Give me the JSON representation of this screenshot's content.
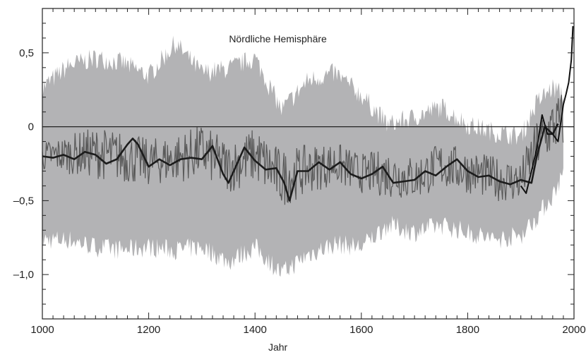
{
  "chart_data": {
    "type": "line",
    "title": "",
    "annotation": "Nördliche Hemisphäre",
    "xlabel": "Jahr",
    "ylabel": "",
    "xlim": [
      1000,
      2000
    ],
    "ylim": [
      -1.3,
      0.8
    ],
    "x_ticks": [
      1000,
      1200,
      1400,
      1600,
      1800,
      2000
    ],
    "x_tick_labels": [
      "1000",
      "1200",
      "1400",
      "1600",
      "1800",
      "2000"
    ],
    "y_ticks": [
      0.5,
      0,
      -0.5,
      -1.0
    ],
    "y_tick_labels": [
      "0,5",
      "0",
      "–0,5",
      "–1,0"
    ],
    "zero_line": true,
    "grid": false,
    "legend": "none",
    "colors": {
      "uncertainty_band": "#b3b3b5",
      "annual_reconstruction": "#5a5a5a",
      "smoothed": "#1c1c1c",
      "instrumental": "#111111",
      "zero_line": "#222222",
      "axes": "#222222"
    },
    "smoothed_series": {
      "x": [
        1000,
        1020,
        1040,
        1060,
        1080,
        1100,
        1120,
        1140,
        1160,
        1170,
        1180,
        1200,
        1220,
        1240,
        1260,
        1280,
        1300,
        1320,
        1340,
        1350,
        1360,
        1380,
        1400,
        1420,
        1440,
        1455,
        1465,
        1480,
        1500,
        1520,
        1540,
        1560,
        1580,
        1600,
        1620,
        1640,
        1660,
        1680,
        1700,
        1720,
        1740,
        1760,
        1780,
        1800,
        1820,
        1840,
        1860,
        1880,
        1900,
        1920,
        1930,
        1945,
        1960,
        1970
      ],
      "y": [
        -0.2,
        -0.21,
        -0.19,
        -0.22,
        -0.17,
        -0.19,
        -0.25,
        -0.22,
        -0.12,
        -0.08,
        -0.12,
        -0.27,
        -0.22,
        -0.26,
        -0.22,
        -0.21,
        -0.22,
        -0.13,
        -0.32,
        -0.38,
        -0.3,
        -0.14,
        -0.23,
        -0.29,
        -0.28,
        -0.38,
        -0.5,
        -0.3,
        -0.3,
        -0.24,
        -0.29,
        -0.24,
        -0.32,
        -0.35,
        -0.32,
        -0.27,
        -0.38,
        -0.37,
        -0.36,
        -0.3,
        -0.33,
        -0.27,
        -0.22,
        -0.3,
        -0.34,
        -0.33,
        -0.37,
        -0.39,
        -0.36,
        -0.38,
        -0.2,
        0.0,
        -0.05,
        0.02
      ]
    },
    "annual_series_envelope": {
      "x": [
        1000,
        1050,
        1100,
        1150,
        1200,
        1250,
        1300,
        1350,
        1400,
        1450,
        1500,
        1550,
        1600,
        1650,
        1700,
        1750,
        1800,
        1850,
        1900,
        1930,
        1960,
        1980
      ],
      "upper": [
        -0.1,
        -0.05,
        0.0,
        -0.03,
        -0.08,
        -0.05,
        0.02,
        -0.1,
        0.0,
        -0.15,
        -0.12,
        -0.1,
        -0.18,
        -0.15,
        -0.2,
        -0.1,
        -0.15,
        -0.2,
        -0.22,
        0.05,
        0.2,
        0.25
      ],
      "lower": [
        -0.3,
        -0.32,
        -0.35,
        -0.38,
        -0.4,
        -0.38,
        -0.35,
        -0.45,
        -0.38,
        -0.55,
        -0.45,
        -0.4,
        -0.45,
        -0.48,
        -0.5,
        -0.42,
        -0.45,
        -0.5,
        -0.52,
        -0.3,
        -0.2,
        -0.15
      ]
    },
    "instrumental_series": {
      "x": [
        1900,
        1910,
        1920,
        1930,
        1940,
        1950,
        1960,
        1970,
        1980,
        1985,
        1990,
        1995,
        1998
      ],
      "y": [
        -0.4,
        -0.45,
        -0.3,
        -0.15,
        0.08,
        -0.05,
        -0.05,
        -0.1,
        0.15,
        0.22,
        0.3,
        0.45,
        0.68
      ]
    },
    "uncertainty_band": {
      "x": [
        1000,
        1050,
        1100,
        1150,
        1200,
        1250,
        1300,
        1350,
        1400,
        1450,
        1500,
        1550,
        1600,
        1650,
        1700,
        1750,
        1800,
        1850,
        1900,
        1930,
        1960,
        1980
      ],
      "upper": [
        0.25,
        0.4,
        0.45,
        0.42,
        0.33,
        0.55,
        0.35,
        0.38,
        0.45,
        0.1,
        0.3,
        0.35,
        0.2,
        0.0,
        0.05,
        0.12,
        0.0,
        -0.05,
        -0.08,
        0.15,
        0.25,
        0.2
      ],
      "lower": [
        -0.75,
        -0.75,
        -0.8,
        -0.82,
        -0.8,
        -0.82,
        -0.8,
        -0.9,
        -0.8,
        -0.98,
        -0.85,
        -0.78,
        -0.8,
        -0.65,
        -0.7,
        -0.65,
        -0.7,
        -0.75,
        -0.72,
        -0.6,
        -0.45,
        -0.3
      ]
    }
  }
}
